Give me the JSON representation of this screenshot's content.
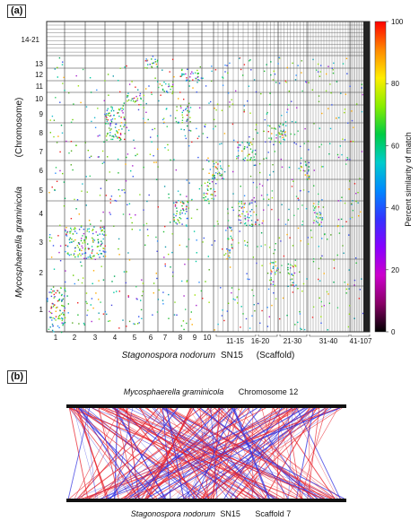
{
  "panel_a": {
    "label": "(a)",
    "y_chromosome_labels": [
      "14-21",
      "13",
      "12",
      "11",
      "10",
      "9",
      "8",
      "7",
      "6",
      "5",
      "4",
      "3",
      "2",
      "1"
    ],
    "x_scaffold_labels": [
      "1",
      "2",
      "3",
      "4",
      "5",
      "6",
      "7",
      "8",
      "9",
      "10",
      "11-15",
      "16-20",
      "21-30",
      "31-40",
      "41-107"
    ],
    "y_axis_species": "Mycosphaerella graminicola",
    "y_axis_unit": "(Chromosome)",
    "x_axis_species": "Stagonospora nodorum",
    "x_axis_strain": "SN15",
    "x_axis_unit": "(Scaffold)",
    "colorbar": {
      "title": "Percent similarity of match",
      "ticks": [
        "100",
        "80",
        "60",
        "40",
        "20",
        "0"
      ],
      "gradient_colors": [
        "#ff0000",
        "#ff8800",
        "#ffee00",
        "#88ee00",
        "#00cc44",
        "#00cccc",
        "#0088ff",
        "#3333ff",
        "#8800ff",
        "#cc00cc",
        "#880066",
        "#000000"
      ]
    }
  },
  "panel_b": {
    "label": "(b)",
    "top_species": "Mycosphaerella graminicola",
    "top_feature": "Chromosome 12",
    "bottom_species": "Stagonospora nodorum",
    "bottom_strain": "SN15",
    "bottom_feature": "Scaffold 7",
    "link_colors": [
      "#e8202a",
      "#3030e0"
    ]
  }
}
